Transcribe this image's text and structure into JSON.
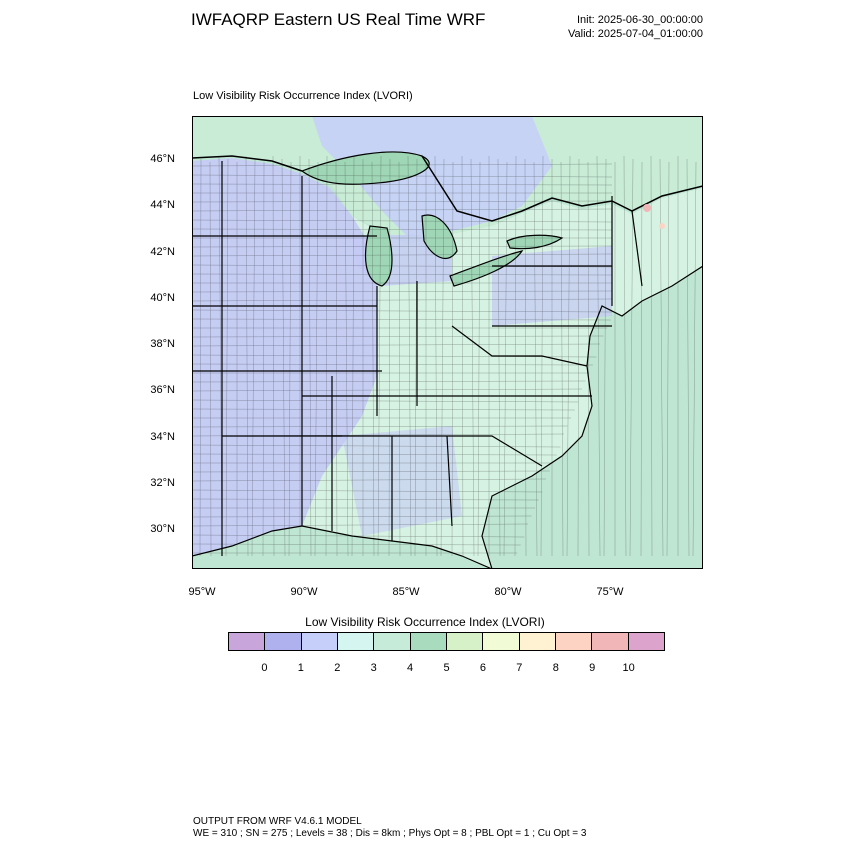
{
  "header": {
    "title": "IWFAQRP Eastern US Real Time WRF",
    "init": "Init: 2025-06-30_00:00:00",
    "valid": "Valid: 2025-07-04_01:00:00"
  },
  "field_title": "Low Visibility Risk Occurrence Index   (LVORI)",
  "map": {
    "lat_labels": [
      "46°N",
      "44°N",
      "42°N",
      "40°N",
      "38°N",
      "36°N",
      "34°N",
      "32°N",
      "30°N"
    ],
    "lon_labels": [
      "95°W",
      "90°W",
      "85°W",
      "80°W",
      "75°W"
    ],
    "colors": {
      "ocean": "#bfe6d2",
      "lake": "#9fd6b6",
      "land_low": "#c3c9f5",
      "land_mid": "#d6f2e2",
      "canada": "#c8ecd6",
      "border": "#000000"
    }
  },
  "colorbar": {
    "title": "Low Visibility Risk Occurrence Index  (LVORI)",
    "colors": [
      "#c8a6dc",
      "#aeb1ee",
      "#c6cff9",
      "#d5f5f0",
      "#c7ebd9",
      "#a9dcbf",
      "#d6f1c8",
      "#f1fbd6",
      "#fff2d3",
      "#fdd3c4",
      "#f1b7b8",
      "#dca3cd"
    ],
    "labels": [
      "0",
      "1",
      "2",
      "3",
      "4",
      "5",
      "6",
      "7",
      "8",
      "9",
      "10"
    ]
  },
  "footer": {
    "line1": "OUTPUT FROM WRF V4.6.1 MODEL",
    "line2": "WE = 310 ; SN = 275 ; Levels = 38 ; Dis = 8km ; Phys Opt = 8 ; PBL Opt = 1 ; Cu Opt = 3"
  }
}
